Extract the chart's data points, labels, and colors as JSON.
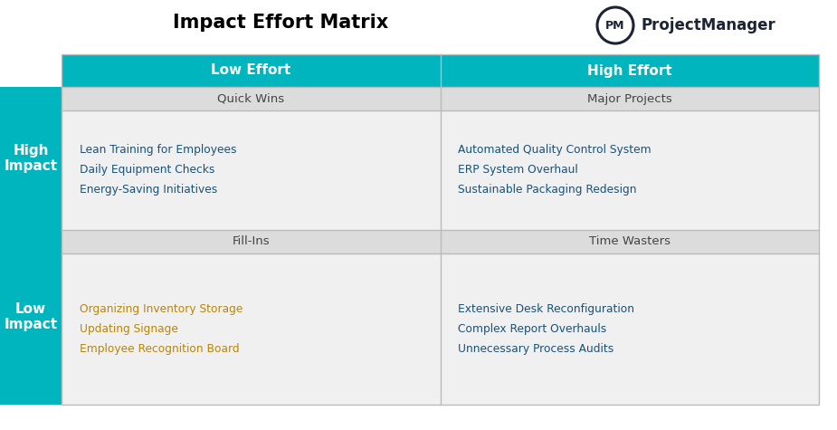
{
  "title": "Impact Effort Matrix",
  "teal": "#00B5BD",
  "light_gray": "#DCDCDC",
  "content_bg": "#F0F0F0",
  "white": "#FFFFFF",
  "dark_gray": "#444444",
  "text_blue": "#1A5276",
  "text_orange": "#B8860B",
  "header_text": "#FFFFFF",
  "logo_dark": "#1C2333",
  "col_headers": [
    "Low Effort",
    "High Effort"
  ],
  "row_headers": [
    "High\nImpact",
    "Low\nImpact"
  ],
  "quadrant_labels": [
    "Quick Wins",
    "Major Projects",
    "Fill-Ins",
    "Time Wasters"
  ],
  "items": {
    "top_left": [
      "Lean Training for Employees",
      "Daily Equipment Checks",
      "Energy-Saving Initiatives"
    ],
    "top_right": [
      "Automated Quality Control System",
      "ERP System Overhaul",
      "Sustainable Packaging Redesign"
    ],
    "bottom_left": [
      "Organizing Inventory Storage",
      "Updating Signage",
      "Employee Recognition Board"
    ],
    "bottom_right": [
      "Extensive Desk Reconfiguration",
      "Complex Report Overhauls",
      "Unnecessary Process Audits"
    ]
  },
  "item_colors": {
    "top_left": "#1A5276",
    "top_right": "#1A5276",
    "bottom_left": "#B8860B",
    "bottom_right": "#1A5276"
  },
  "logo_text": "ProjectManager",
  "logo_pm": "PM",
  "figsize": [
    9.25,
    4.75
  ],
  "dpi": 100
}
